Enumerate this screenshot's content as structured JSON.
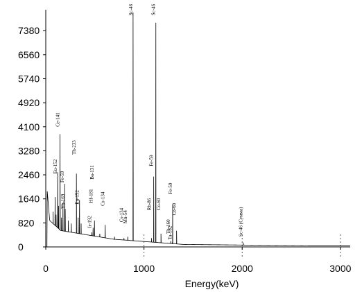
{
  "chart_data": {
    "type": "line",
    "title": "",
    "xlabel": "Energy(keV)",
    "ylabel": "",
    "xlim": [
      0,
      3100
    ],
    "ylim": [
      0,
      8000
    ],
    "x_ticks": [
      0,
      1000,
      2000,
      3000
    ],
    "x_tick_labels": [
      "0",
      "1000",
      "2000",
      "3000"
    ],
    "y_ticks": [
      0,
      820,
      1640,
      2460,
      3280,
      4100,
      4920,
      5740,
      6560,
      7380
    ],
    "y_tick_labels": [
      "0",
      "820",
      "1640",
      "2460",
      "3280",
      "4100",
      "4920",
      "5740",
      "6560",
      "7380"
    ],
    "grid": "dashed vertical at x ticks",
    "line_color": "#000000",
    "peaks": [
      {
        "label": "Eu-152",
        "energy": 121,
        "counts": 2550,
        "label_counts": 2500
      },
      {
        "label": "Ce-141",
        "energy": 145,
        "counts": 3850,
        "label_counts": 4100
      },
      {
        "label": "Fe-59",
        "energy": 192,
        "counts": 2150,
        "label_counts": 2200
      },
      {
        "label": "Yb-169",
        "energy": 198,
        "counts": 1300,
        "label_counts": 1300
      },
      {
        "label": "Th-233",
        "energy": 312,
        "counts": 2500,
        "label_counts": 3150
      },
      {
        "label": "Eu-152",
        "energy": 344,
        "counts": 1600,
        "label_counts": 1450
      },
      {
        "label": "Ir-192",
        "energy": 468,
        "counts": 500,
        "label_counts": 650
      },
      {
        "label": "Hf-181",
        "energy": 482,
        "counts": 650,
        "label_counts": 1500
      },
      {
        "label": "Ba-131",
        "energy": 496,
        "counts": 900,
        "label_counts": 2300
      },
      {
        "label": "Cs-134",
        "energy": 605,
        "counts": 750,
        "label_counts": 1400
      },
      {
        "label": "Cs-134",
        "energy": 796,
        "counts": 300,
        "label_counts": 850
      },
      {
        "label": "Mn-54",
        "energy": 835,
        "counts": 350,
        "label_counts": 800
      },
      {
        "label": "Sc-46",
        "energy": 889,
        "counts": 8000,
        "label_counts": 7900
      },
      {
        "label": "Fe-59",
        "energy": 1099,
        "counts": 2400,
        "label_counts": 2750
      },
      {
        "label": "Rb-86",
        "energy": 1077,
        "counts": 300,
        "label_counts": 1250
      },
      {
        "label": "Sc-46",
        "energy": 1121,
        "counts": 7650,
        "label_counts": 7900
      },
      {
        "label": "Co-60",
        "energy": 1173,
        "counts": 450,
        "label_counts": 1250
      },
      {
        "label": "Fe-59",
        "energy": 1292,
        "counts": 1450,
        "label_counts": 1800
      },
      {
        "label": "Co-60",
        "energy": 1332,
        "counts": 550,
        "label_counts": 1080
      },
      {
        "label": "Tb-160",
        "energy": 1272,
        "counts": 200,
        "label_counts": 450
      },
      {
        "label": "Ta-182",
        "energy": 1289,
        "counts": 150,
        "label_counts": 250
      },
      {
        "label": "Sc-46 (Сумма)",
        "energy": 2010,
        "counts": 150,
        "label_counts": 350
      }
    ]
  }
}
